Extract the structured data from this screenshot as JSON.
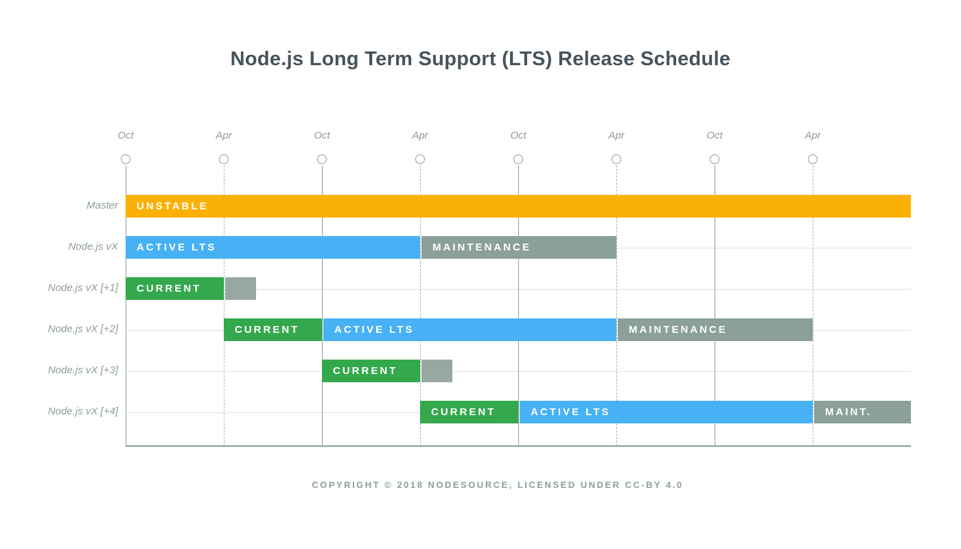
{
  "title": "Node.js Long Term Support (LTS) Release Schedule",
  "footer": "COPYRIGHT © 2018 NODESOURCE, LICENSED UNDER CC-BY 4.0",
  "colors": {
    "unstable": "#FBB005",
    "active_lts": "#47B1F5",
    "current": "#34A84C",
    "maintenance": "#8CA09A",
    "stub": "#97A8A2",
    "axis": "#8C9E99",
    "gridline": "#DFE1E0",
    "title_text": "#46535B",
    "bar_text": "#FFFFFF"
  },
  "chart_data": {
    "type": "gantt",
    "title": "Node.js Long Term Support (LTS) Release Schedule",
    "x_axis_unit": "6 months per tick interval",
    "x_extent": 8,
    "grid": "on",
    "x_ticks": [
      {
        "label": "Oct",
        "line": "solid"
      },
      {
        "label": "Apr",
        "line": "dashed"
      },
      {
        "label": "Oct",
        "line": "solid"
      },
      {
        "label": "Apr",
        "line": "dashed"
      },
      {
        "label": "Oct",
        "line": "solid"
      },
      {
        "label": "Apr",
        "line": "dashed"
      },
      {
        "label": "Oct",
        "line": "solid"
      },
      {
        "label": "Apr",
        "line": "dashed"
      }
    ],
    "rows": [
      {
        "label": "Master",
        "bars": [
          {
            "label": "UNSTABLE",
            "phase": "unstable",
            "start": 0,
            "end": 8
          }
        ]
      },
      {
        "label": "Node.js vX",
        "bars": [
          {
            "label": "ACTIVE LTS",
            "phase": "active_lts",
            "start": 0,
            "end": 3
          },
          {
            "label": "MAINTENANCE",
            "phase": "maintenance",
            "start": 3,
            "end": 5
          }
        ]
      },
      {
        "label": "Node.js vX [+1]",
        "bars": [
          {
            "label": "CURRENT",
            "phase": "current",
            "start": 0,
            "end": 1
          },
          {
            "label": "",
            "phase": "stub",
            "start": 1,
            "end": 1.33
          }
        ]
      },
      {
        "label": "Node.js vX [+2]",
        "bars": [
          {
            "label": "CURRENT",
            "phase": "current",
            "start": 1,
            "end": 2
          },
          {
            "label": "ACTIVE LTS",
            "phase": "active_lts",
            "start": 2,
            "end": 5
          },
          {
            "label": "MAINTENANCE",
            "phase": "maintenance",
            "start": 5,
            "end": 7
          }
        ]
      },
      {
        "label": "Node.js vX [+3]",
        "bars": [
          {
            "label": "CURRENT",
            "phase": "current",
            "start": 2,
            "end": 3
          },
          {
            "label": "",
            "phase": "stub",
            "start": 3,
            "end": 3.33
          }
        ]
      },
      {
        "label": "Node.js vX [+4]",
        "bars": [
          {
            "label": "CURRENT",
            "phase": "current",
            "start": 3,
            "end": 4
          },
          {
            "label": "ACTIVE LTS",
            "phase": "active_lts",
            "start": 4,
            "end": 7
          },
          {
            "label": "MAINT.",
            "phase": "maintenance",
            "start": 7,
            "end": 8
          }
        ]
      }
    ]
  }
}
